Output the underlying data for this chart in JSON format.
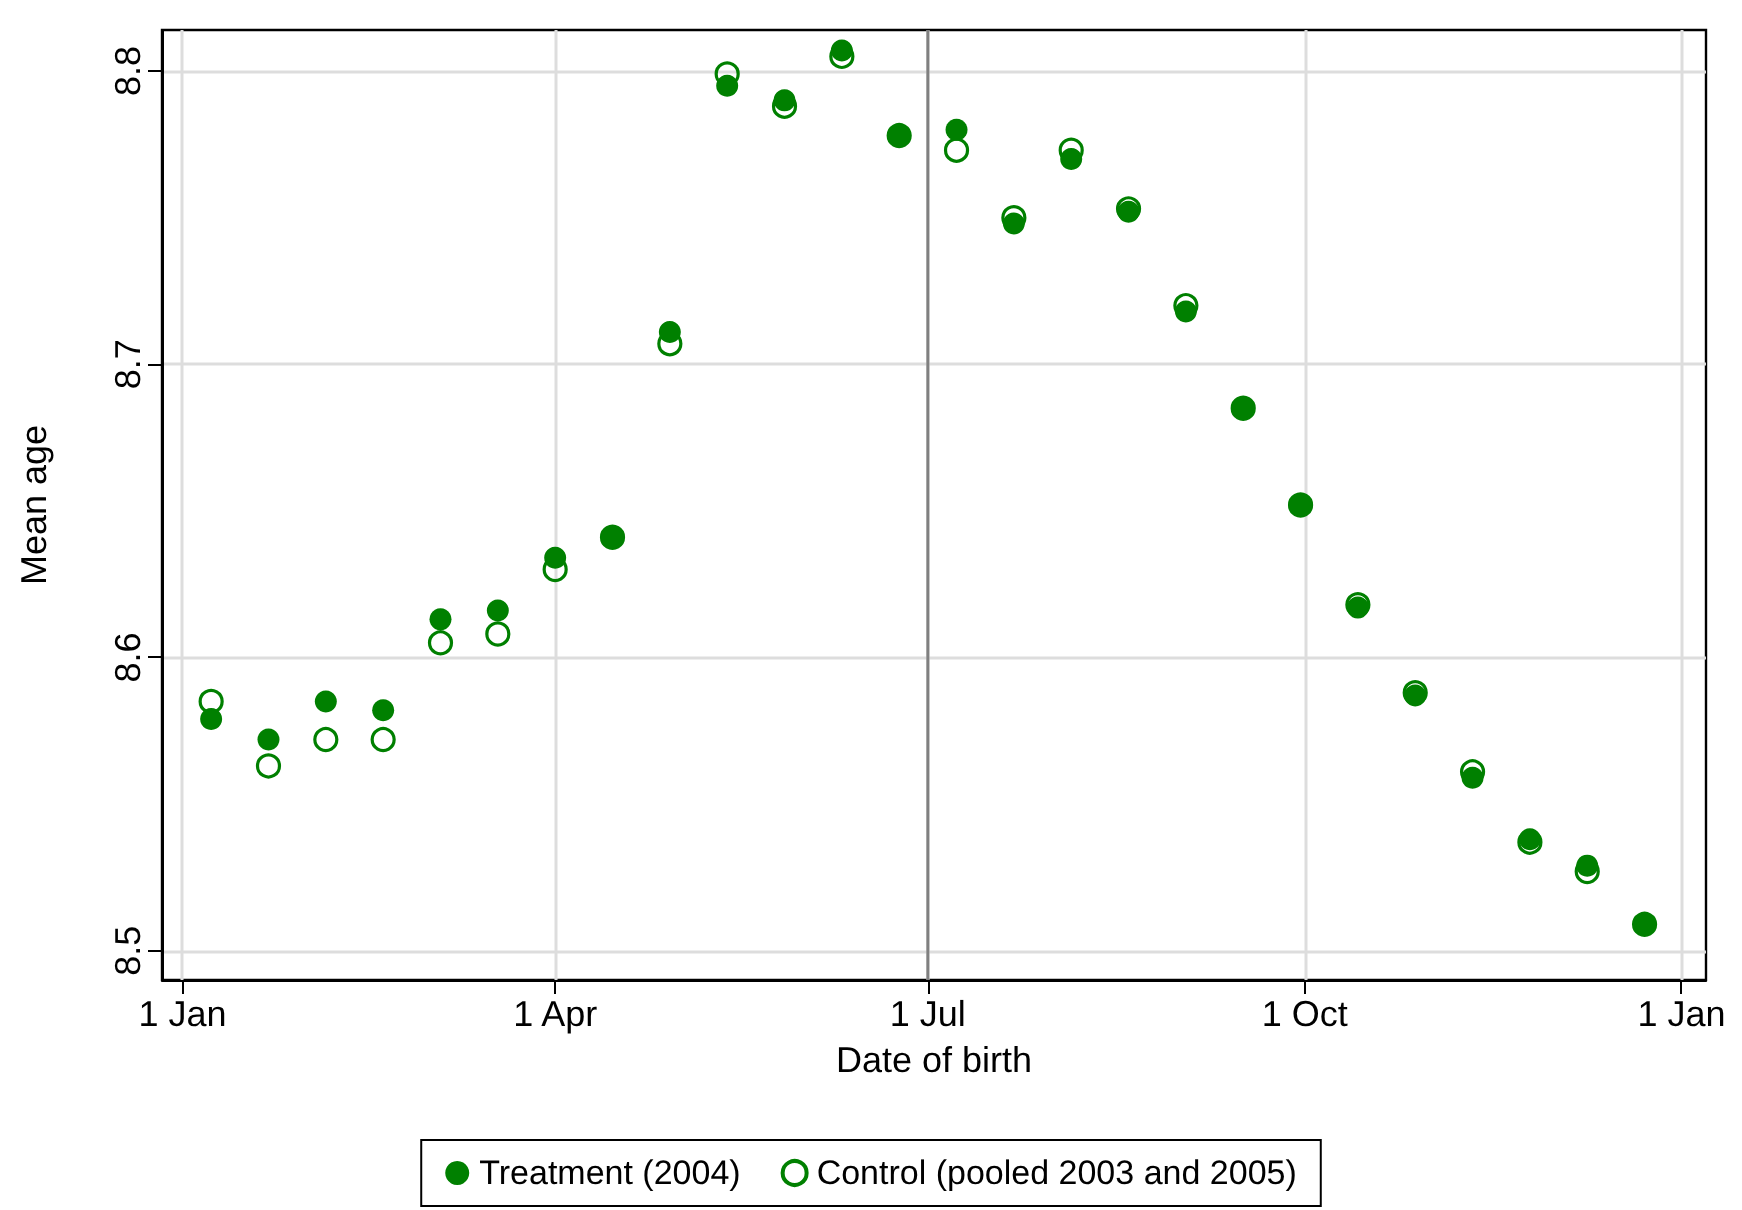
{
  "chart_data": {
    "type": "scatter",
    "xlabel": "Date of birth",
    "ylabel": "Mean age",
    "x": [
      "2004-01-08",
      "2004-01-22",
      "2004-02-05",
      "2004-02-19",
      "2004-03-04",
      "2004-03-18",
      "2004-04-01",
      "2004-04-15",
      "2004-04-29",
      "2004-05-13",
      "2004-05-27",
      "2004-06-10",
      "2004-06-24",
      "2004-07-08",
      "2004-07-22",
      "2004-08-05",
      "2004-08-19",
      "2004-09-02",
      "2004-09-16",
      "2004-09-30",
      "2004-10-14",
      "2004-10-28",
      "2004-11-11",
      "2004-11-25",
      "2004-12-09",
      "2004-12-23"
    ],
    "series": [
      {
        "name": "Treatment (2004)",
        "color": "#008000",
        "values": [
          8.579,
          8.572,
          8.585,
          8.582,
          8.613,
          8.616,
          8.634,
          8.641,
          8.711,
          8.795,
          8.79,
          8.807,
          8.778,
          8.78,
          8.748,
          8.77,
          8.752,
          8.718,
          8.685,
          8.652,
          8.617,
          8.587,
          8.559,
          8.538,
          8.529,
          8.509
        ]
      },
      {
        "name": "Control (pooled 2003 and 2005)",
        "color": "#008000",
        "values": [
          8.585,
          8.563,
          8.572,
          8.572,
          8.605,
          8.608,
          8.63,
          8.641,
          8.707,
          8.799,
          8.788,
          8.805,
          8.778,
          8.773,
          8.75,
          8.773,
          8.753,
          8.72,
          8.685,
          8.652,
          8.618,
          8.588,
          8.561,
          8.537,
          8.527,
          8.509
        ]
      }
    ],
    "xlim": [
      "2003-12-27",
      "2005-01-07"
    ],
    "xticks": [
      {
        "value": "2004-01-01",
        "label": "1 Jan"
      },
      {
        "value": "2004-04-01",
        "label": "1 Apr"
      },
      {
        "value": "2004-07-01",
        "label": "1 Jul"
      },
      {
        "value": "2004-10-01",
        "label": "1 Oct"
      },
      {
        "value": "2005-01-01",
        "label": "1 Jan"
      }
    ],
    "ylim": [
      8.49,
      8.814
    ],
    "yticks": [
      8.5,
      8.6,
      8.7,
      8.8
    ],
    "ref_lines": [
      {
        "axis": "x",
        "value": "2004-07-01",
        "color": "#808080"
      }
    ],
    "grid": true,
    "legend": "bottom",
    "marker": "circle"
  }
}
